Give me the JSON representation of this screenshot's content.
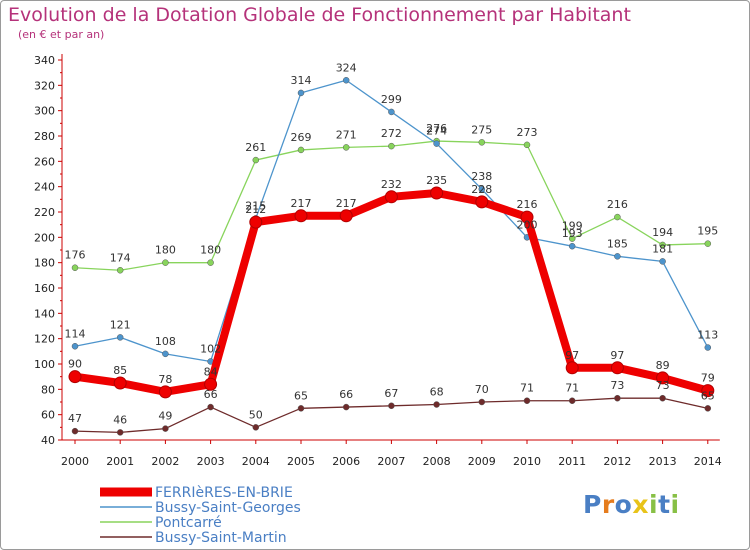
{
  "header": {
    "title": "Evolution de la Dotation Globale de Fonctionnement par Habitant",
    "subtitle": "(en € et par an)"
  },
  "logo": {
    "letters": [
      "P",
      "r",
      "o",
      "x",
      "i",
      "t",
      "i"
    ]
  },
  "chart_data": {
    "type": "line",
    "title": "Evolution de la Dotation Globale de Fonctionnement par Habitant",
    "subtitle": "(en € et par an)",
    "xlabel": "",
    "ylabel": "",
    "ylim": [
      40,
      340
    ],
    "ytick_step": 20,
    "grid": false,
    "legend_position": "bottom-left",
    "categories": [
      "2000",
      "2001",
      "2002",
      "2003",
      "2004",
      "2005",
      "2006",
      "2007",
      "2008",
      "2009",
      "2010",
      "2011",
      "2012",
      "2013",
      "2014"
    ],
    "series": [
      {
        "name": "FERRIèRES-EN-BRIE",
        "color": "#ee0000",
        "values": [
          90,
          85,
          78,
          84,
          212,
          217,
          217,
          232,
          235,
          228,
          216,
          97,
          97,
          89,
          79
        ]
      },
      {
        "name": "Bussy-Saint-Georges",
        "color": "#4d94cc",
        "values": [
          114,
          121,
          108,
          102,
          215,
          314,
          324,
          299,
          274,
          238,
          200,
          193,
          185,
          181,
          113
        ]
      },
      {
        "name": "Pontcarré",
        "color": "#88d45c",
        "values": [
          176,
          174,
          180,
          180,
          261,
          269,
          271,
          272,
          276,
          275,
          273,
          199,
          216,
          194,
          195
        ]
      },
      {
        "name": "Bussy-Saint-Martin",
        "color": "#6e2b2b",
        "values": [
          47,
          46,
          49,
          66,
          50,
          65,
          66,
          67,
          68,
          70,
          71,
          71,
          73,
          73,
          65
        ]
      }
    ]
  },
  "colors": {
    "title": "#b5327a",
    "axis": "#cc0000",
    "logo": [
      "#4a7fc4",
      "#e57c1d",
      "#4a7fc4",
      "#e8c31a",
      "#88c046",
      "#4a7fc4",
      "#88c046"
    ]
  }
}
